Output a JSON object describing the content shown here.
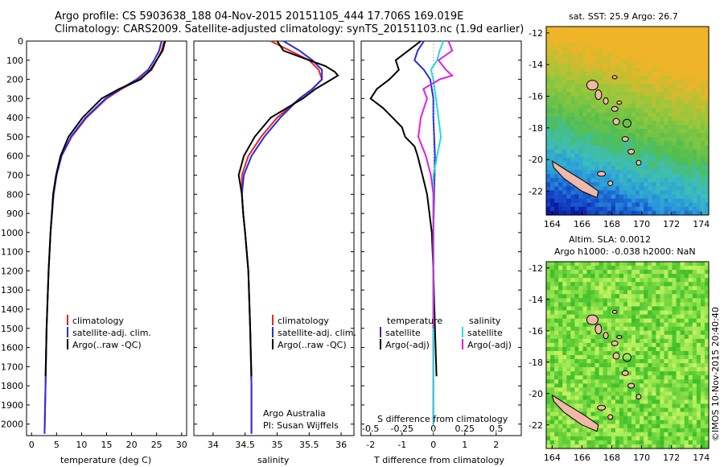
{
  "header": {
    "line1": "Argo profile: CS 5903638_188 04-Nov-2015 20151105_444 17.706S 169.019E",
    "line2": "Climatology: CARS2009. Satellite-adjusted climatology: synTS_20151103.nc (1.9d earlier)"
  },
  "colors": {
    "climatology": "#e8251f",
    "satellite": "#2a2ae0",
    "argo": "#000000",
    "sat_salinity": "#22dde0",
    "argo_salinity": "#e020e0",
    "land": "#f0b8a8"
  },
  "chart_data": [
    {
      "type": "line",
      "name": "temperature-profile",
      "xlabel": "temperature (deg C)",
      "ylabel": "",
      "xlim": [
        -1,
        31
      ],
      "ylim": [
        2060,
        0
      ],
      "xticks": [
        "0",
        "5",
        "10",
        "15",
        "20",
        "25",
        "30"
      ],
      "yticks": [
        "0",
        "100",
        "200",
        "300",
        "400",
        "500",
        "600",
        "700",
        "800",
        "900",
        "1000",
        "1100",
        "1200",
        "1300",
        "1400",
        "1500",
        "1600",
        "1700",
        "1800",
        "1900",
        "2000"
      ],
      "legend": {
        "placement": "lower-right",
        "labels": [
          "climatology",
          "satellite-adj. clim.",
          "Argo(..raw -QC)"
        ]
      },
      "series": [
        {
          "name": "climatology",
          "depth": [
            0,
            50,
            100,
            150,
            200,
            250,
            300,
            400,
            500,
            600,
            700,
            800,
            1000,
            1200,
            1500,
            1800,
            2050
          ],
          "values": [
            26.5,
            26,
            25,
            24,
            21.5,
            18,
            15,
            11,
            8,
            6,
            5,
            4.4,
            3.8,
            3.4,
            3,
            2.8,
            2.6
          ]
        },
        {
          "name": "satellite-adj. clim.",
          "depth": [
            0,
            50,
            100,
            150,
            200,
            250,
            300,
            400,
            500,
            600,
            700,
            800,
            1000,
            1200,
            1500,
            1800,
            2050
          ],
          "values": [
            26,
            25.5,
            24.5,
            23.3,
            21,
            17.8,
            14.8,
            10.8,
            7.9,
            6,
            5,
            4.4,
            3.8,
            3.4,
            3,
            2.8,
            2.6
          ]
        },
        {
          "name": "Argo(..raw -QC)",
          "depth": [
            0,
            50,
            100,
            150,
            200,
            250,
            300,
            400,
            500,
            600,
            700,
            800,
            1000,
            1200,
            1500,
            1750
          ],
          "values": [
            26.7,
            26.2,
            25,
            23.8,
            21.8,
            17.5,
            14,
            10.2,
            7.4,
            5.8,
            4.9,
            4.3,
            3.8,
            3.4,
            3,
            2.8
          ]
        }
      ]
    },
    {
      "type": "line",
      "name": "salinity-profile",
      "xlabel": "salinity",
      "xlim": [
        33.7,
        36.2
      ],
      "ylim": [
        2060,
        0
      ],
      "xticks": [
        "34",
        "34.5",
        "35",
        "35.5",
        "36"
      ],
      "legend": {
        "placement": "lower-right",
        "labels": [
          "climatology",
          "satellite-adj. clim.",
          "Argo(..raw -QC)"
        ]
      },
      "annotation": [
        "Argo Australia",
        "PI: Susan Wijffels"
      ],
      "series": [
        {
          "name": "climatology",
          "depth": [
            0,
            50,
            100,
            150,
            200,
            250,
            300,
            400,
            500,
            600,
            700,
            800,
            900,
            1000,
            1200,
            1500,
            1800,
            2050
          ],
          "values": [
            34.9,
            35.2,
            35.5,
            35.65,
            35.7,
            35.55,
            35.35,
            35,
            34.75,
            34.55,
            34.45,
            34.45,
            34.47,
            34.5,
            34.55,
            34.58,
            34.6,
            34.6
          ]
        },
        {
          "name": "satellite-adj. clim.",
          "depth": [
            0,
            50,
            100,
            150,
            200,
            250,
            300,
            400,
            500,
            600,
            700,
            800,
            900,
            1000,
            1200,
            1500,
            1800,
            2050
          ],
          "values": [
            35.1,
            35.35,
            35.55,
            35.7,
            35.7,
            35.55,
            35.35,
            35.05,
            34.8,
            34.6,
            34.48,
            34.45,
            34.47,
            34.5,
            34.55,
            34.58,
            34.6,
            34.6
          ]
        },
        {
          "name": "Argo(..raw -QC)",
          "depth": [
            0,
            50,
            100,
            130,
            160,
            180,
            200,
            250,
            300,
            400,
            500,
            600,
            700,
            800,
            900,
            1000,
            1200,
            1500,
            1750
          ],
          "values": [
            35,
            35.1,
            35.5,
            35.75,
            35.9,
            35.95,
            35.85,
            35.6,
            35.4,
            34.9,
            34.65,
            34.48,
            34.4,
            34.45,
            34.47,
            34.5,
            34.55,
            34.58,
            34.6
          ]
        }
      ]
    },
    {
      "type": "line",
      "name": "difference-profile",
      "xlabel": "T difference from climatology",
      "xlabel_top": "S difference from climatology",
      "xlim": [
        -2.3,
        2.8
      ],
      "ylim": [
        2060,
        0
      ],
      "xticks": [
        "-2",
        "-1",
        "0",
        "1",
        "2"
      ],
      "sticks": [
        "-0.5",
        "-0.25",
        "0",
        "0.25",
        "0.5"
      ],
      "legend": {
        "placement": "lower-center",
        "temperature_title": "temperature",
        "salinity_title": "salinity",
        "labels": [
          "satellite",
          "Argo(-adj)",
          "satellite",
          "Argo(-adj)"
        ]
      },
      "series": [
        {
          "name": "temperature satellite",
          "depth": [
            0,
            50,
            100,
            150,
            200,
            300,
            400,
            600,
            1000,
            1500,
            2000
          ],
          "values": [
            -0.3,
            -0.5,
            -0.6,
            -0.3,
            -0.1,
            0,
            0,
            0.05,
            0,
            0,
            0
          ]
        },
        {
          "name": "temperature Argo(-adj)",
          "depth": [
            0,
            50,
            100,
            150,
            200,
            250,
            300,
            350,
            400,
            450,
            500,
            550,
            600,
            700,
            800,
            1000,
            1200,
            1500,
            1750
          ],
          "values": [
            -0.4,
            -0.8,
            -1.2,
            -1.1,
            -1.4,
            -1.8,
            -2,
            -1.6,
            -1.3,
            -1,
            -0.9,
            -0.6,
            -0.5,
            -0.35,
            -0.2,
            -0.05,
            0,
            0.05,
            0.1
          ]
        },
        {
          "name": "salinity satellite",
          "depth": [
            0,
            50,
            100,
            150,
            200,
            300,
            400,
            500,
            600,
            700,
            800,
            1000,
            1500,
            2000
          ],
          "values": [
            0.08,
            0.05,
            0.03,
            -0.02,
            0,
            0.02,
            0.04,
            0.06,
            0.03,
            0,
            0,
            0,
            0,
            0
          ]
        },
        {
          "name": "salinity Argo(-adj)",
          "depth": [
            0,
            50,
            100,
            150,
            180,
            200,
            250,
            300,
            400,
            500,
            600,
            700,
            800,
            1000,
            1500
          ],
          "values": [
            0.12,
            0.15,
            0.04,
            0.1,
            0.15,
            0.05,
            -0.08,
            -0.05,
            -0.1,
            -0.12,
            -0.06,
            -0.02,
            0,
            0,
            0
          ]
        }
      ]
    }
  ],
  "maps": {
    "sst": {
      "title": "sat. SST: 25.9 Argo: 26.7",
      "lat_ticks": [
        "-12",
        "-14",
        "-16",
        "-18",
        "-20",
        "-22"
      ],
      "lon_ticks": [
        "164",
        "166",
        "168",
        "170",
        "172",
        "174"
      ]
    },
    "sla": {
      "title_line1": "Altim. SLA: 0.0012",
      "title_line2": "Argo h1000: -0.038 h2000: NaN",
      "lat_ticks": [
        "-12",
        "-14",
        "-16",
        "-18",
        "-20",
        "-22"
      ],
      "lon_ticks": [
        "164",
        "166",
        "168",
        "170",
        "172",
        "174"
      ]
    }
  },
  "credit": "©IMOS 10-Nov-2015 20:40:40"
}
